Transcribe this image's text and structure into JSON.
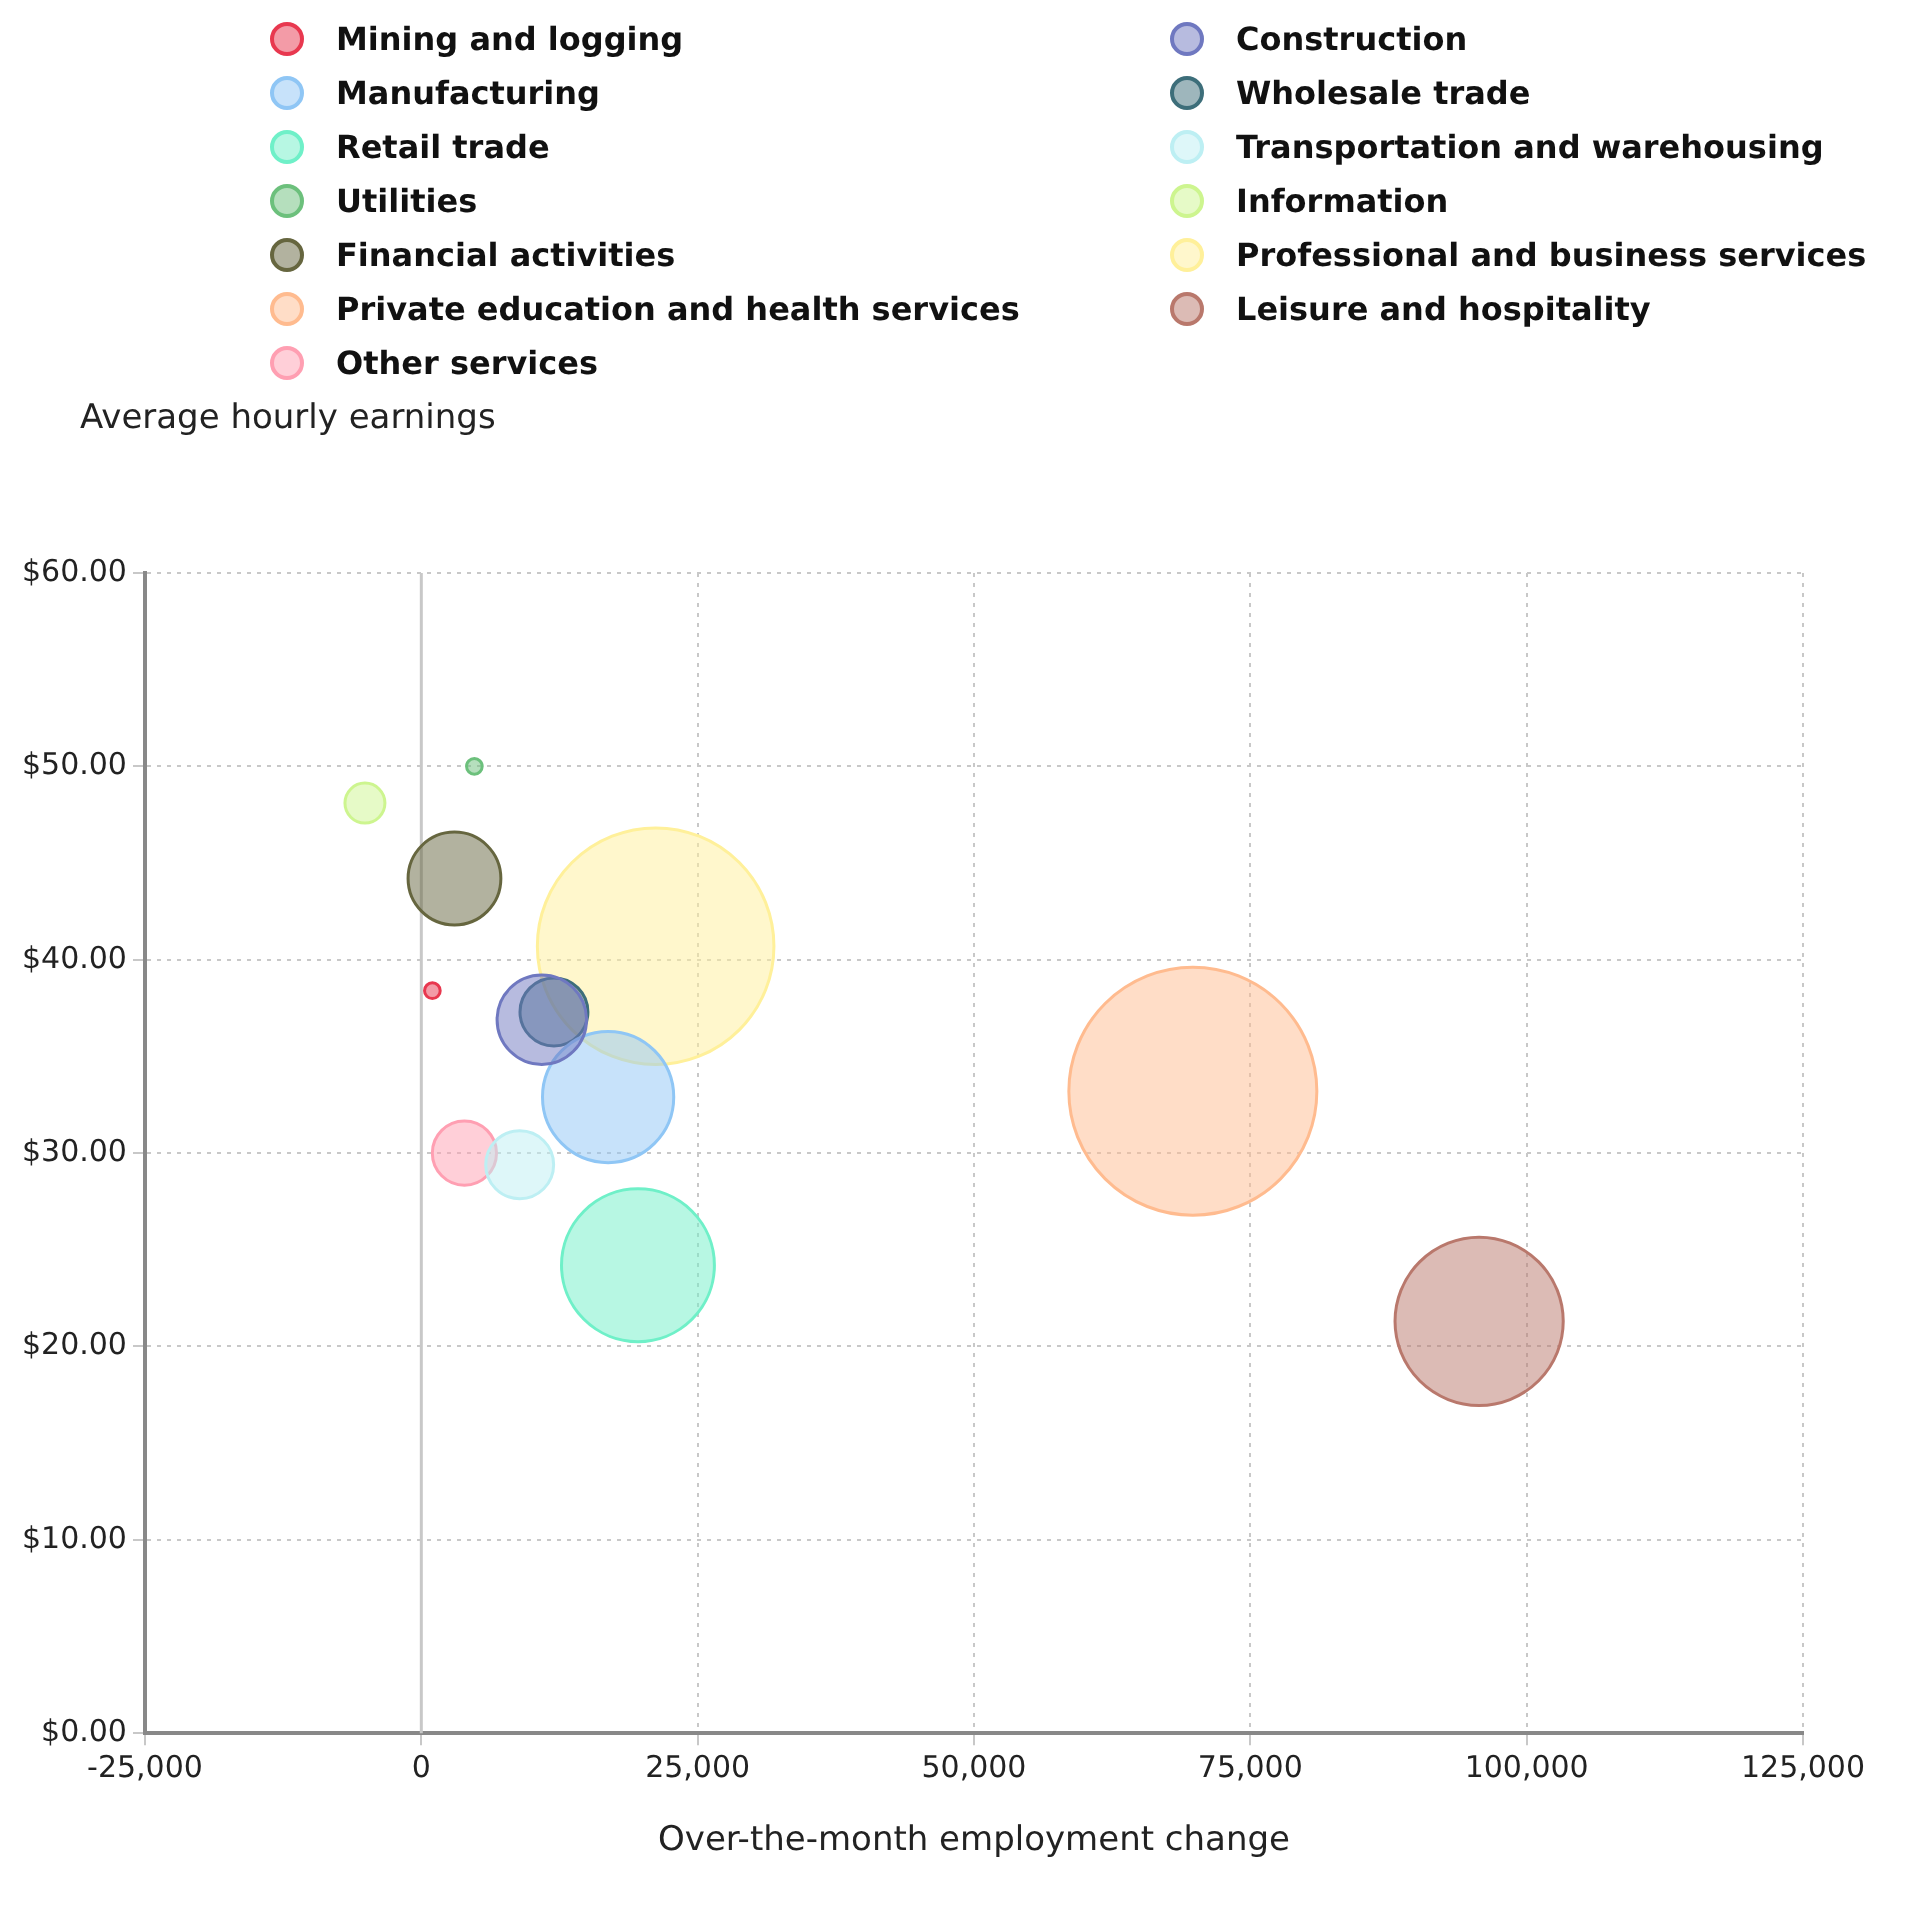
{
  "chart_data": {
    "type": "bubble",
    "ylabel": "Average hourly earnings",
    "xlabel": "Over-the-month employment change",
    "series": [
      {
        "name": "Mining and logging",
        "color": "#e8384f",
        "x": [
          1000
        ],
        "values": [
          38.4
        ],
        "sizes": [
          0.004
        ]
      },
      {
        "name": "Construction",
        "color": "#6f78c0",
        "x": [
          10900
        ],
        "values": [
          36.9
        ],
        "sizes": [
          0.13
        ]
      },
      {
        "name": "Manufacturing",
        "color": "#8fc6f5",
        "x": [
          16900
        ],
        "values": [
          32.9
        ],
        "sizes": [
          0.28
        ]
      },
      {
        "name": "Wholesale trade",
        "color": "#3d6e7a",
        "x": [
          12000
        ],
        "values": [
          37.3
        ],
        "sizes": [
          0.075
        ]
      },
      {
        "name": "Retail trade",
        "color": "#6ff0c8",
        "x": [
          19600
        ],
        "values": [
          24.2
        ],
        "sizes": [
          0.38
        ]
      },
      {
        "name": "Transportation and warehousing",
        "color": "#bdeff3",
        "x": [
          8900
        ],
        "values": [
          29.4
        ],
        "sizes": [
          0.075
        ]
      },
      {
        "name": "Utilities",
        "color": "#6cc07c",
        "x": [
          4800
        ],
        "values": [
          50.0
        ],
        "sizes": [
          0.004
        ]
      },
      {
        "name": "Information",
        "color": "#cdf58f",
        "x": [
          -5100
        ],
        "values": [
          48.1
        ],
        "sizes": [
          0.026
        ]
      },
      {
        "name": "Financial activities",
        "color": "#66663f",
        "x": [
          3000
        ],
        "values": [
          44.2
        ],
        "sizes": [
          0.14
        ]
      },
      {
        "name": "Professional and business services",
        "color": "#fff09a",
        "x": [
          21200
        ],
        "values": [
          40.7
        ],
        "sizes": [
          0.91
        ]
      },
      {
        "name": "Private education and health services",
        "color": "#ffbb8f",
        "x": [
          69800
        ],
        "values": [
          33.2
        ],
        "sizes": [
          1
        ]
      },
      {
        "name": "Leisure and hospitality",
        "color": "#b9786c",
        "x": [
          95700
        ],
        "values": [
          21.3
        ],
        "sizes": [
          0.46
        ]
      },
      {
        "name": "Other services",
        "color": "#ff9fb2",
        "x": [
          3900
        ],
        "values": [
          30.0
        ],
        "sizes": [
          0.067
        ]
      }
    ],
    "xlim": [
      -25000,
      125000
    ],
    "xticks": [
      {
        "value": -25000,
        "label": "-25,000"
      },
      0,
      {
        "value": 25000,
        "label": "25,000"
      },
      {
        "value": 50000,
        "label": "50,000"
      },
      {
        "value": 75000,
        "label": "75,000"
      },
      {
        "value": 100000,
        "label": "100,000"
      },
      {
        "value": 125000,
        "label": "125,000"
      }
    ],
    "ylim": [
      0,
      60
    ],
    "yticks": [
      {
        "value": 0,
        "label": "$0.00"
      },
      {
        "value": 10,
        "label": "$10.00"
      },
      {
        "value": 20,
        "label": "$20.00"
      },
      {
        "value": 30,
        "label": "$30.00"
      },
      {
        "value": 40,
        "label": "$40.00"
      },
      {
        "value": 50,
        "label": "$50.00"
      },
      {
        "value": 60,
        "label": "$60.00"
      }
    ],
    "ref_lines": [
      {
        "axis": "x",
        "value": 0,
        "color": "#c8c8c8"
      }
    ],
    "grid": true,
    "legend": "top"
  }
}
